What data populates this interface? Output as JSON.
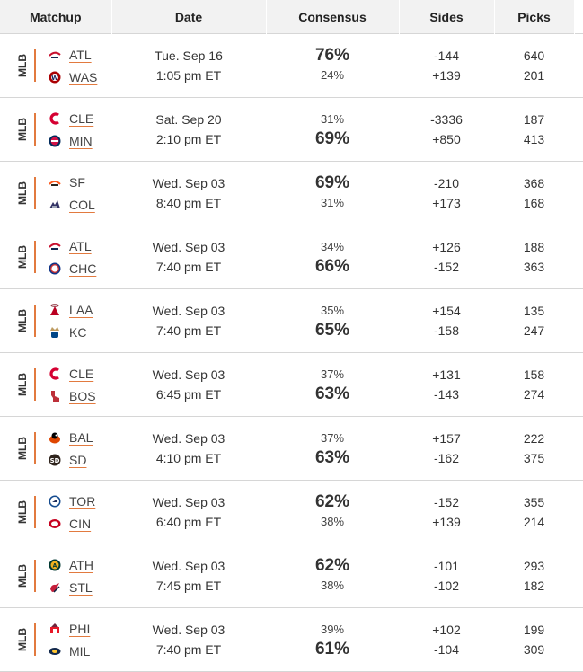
{
  "header": {
    "matchup": "Matchup",
    "date": "Date",
    "consensus": "Consensus",
    "sides": "Sides",
    "picks": "Picks"
  },
  "rows": [
    {
      "league": "MLB",
      "away": {
        "abbr": "ATL",
        "logo": "braves-logo-icon"
      },
      "home": {
        "abbr": "WAS",
        "logo": "nationals-logo-icon"
      },
      "date": "Tue. Sep 16",
      "time": "1:05 pm ET",
      "away_pct": "76%",
      "home_pct": "24%",
      "favored": "away",
      "away_side": "-144",
      "home_side": "+139",
      "away_picks": "640",
      "home_picks": "201"
    },
    {
      "league": "MLB",
      "away": {
        "abbr": "CLE",
        "logo": "guardians-logo-icon"
      },
      "home": {
        "abbr": "MIN",
        "logo": "twins-logo-icon"
      },
      "date": "Sat. Sep 20",
      "time": "2:10 pm ET",
      "away_pct": "31%",
      "home_pct": "69%",
      "favored": "home",
      "away_side": "-3336",
      "home_side": "+850",
      "away_picks": "187",
      "home_picks": "413"
    },
    {
      "league": "MLB",
      "away": {
        "abbr": "SF",
        "logo": "giants-logo-icon"
      },
      "home": {
        "abbr": "COL",
        "logo": "rockies-logo-icon"
      },
      "date": "Wed. Sep 03",
      "time": "8:40 pm ET",
      "away_pct": "69%",
      "home_pct": "31%",
      "favored": "away",
      "away_side": "-210",
      "home_side": "+173",
      "away_picks": "368",
      "home_picks": "168"
    },
    {
      "league": "MLB",
      "away": {
        "abbr": "ATL",
        "logo": "braves-logo-icon"
      },
      "home": {
        "abbr": "CHC",
        "logo": "cubs-logo-icon"
      },
      "date": "Wed. Sep 03",
      "time": "7:40 pm ET",
      "away_pct": "34%",
      "home_pct": "66%",
      "favored": "home",
      "away_side": "+126",
      "home_side": "-152",
      "away_picks": "188",
      "home_picks": "363"
    },
    {
      "league": "MLB",
      "away": {
        "abbr": "LAA",
        "logo": "angels-logo-icon"
      },
      "home": {
        "abbr": "KC",
        "logo": "royals-logo-icon"
      },
      "date": "Wed. Sep 03",
      "time": "7:40 pm ET",
      "away_pct": "35%",
      "home_pct": "65%",
      "favored": "home",
      "away_side": "+154",
      "home_side": "-158",
      "away_picks": "135",
      "home_picks": "247"
    },
    {
      "league": "MLB",
      "away": {
        "abbr": "CLE",
        "logo": "guardians-logo-icon"
      },
      "home": {
        "abbr": "BOS",
        "logo": "redsox-logo-icon"
      },
      "date": "Wed. Sep 03",
      "time": "6:45 pm ET",
      "away_pct": "37%",
      "home_pct": "63%",
      "favored": "home",
      "away_side": "+131",
      "home_side": "-143",
      "away_picks": "158",
      "home_picks": "274"
    },
    {
      "league": "MLB",
      "away": {
        "abbr": "BAL",
        "logo": "orioles-logo-icon"
      },
      "home": {
        "abbr": "SD",
        "logo": "padres-logo-icon"
      },
      "date": "Wed. Sep 03",
      "time": "4:10 pm ET",
      "away_pct": "37%",
      "home_pct": "63%",
      "favored": "home",
      "away_side": "+157",
      "home_side": "-162",
      "away_picks": "222",
      "home_picks": "375"
    },
    {
      "league": "MLB",
      "away": {
        "abbr": "TOR",
        "logo": "bluejays-logo-icon"
      },
      "home": {
        "abbr": "CIN",
        "logo": "reds-logo-icon"
      },
      "date": "Wed. Sep 03",
      "time": "6:40 pm ET",
      "away_pct": "62%",
      "home_pct": "38%",
      "favored": "away",
      "away_side": "-152",
      "home_side": "+139",
      "away_picks": "355",
      "home_picks": "214"
    },
    {
      "league": "MLB",
      "away": {
        "abbr": "ATH",
        "logo": "athletics-logo-icon"
      },
      "home": {
        "abbr": "STL",
        "logo": "cardinals-logo-icon"
      },
      "date": "Wed. Sep 03",
      "time": "7:45 pm ET",
      "away_pct": "62%",
      "home_pct": "38%",
      "favored": "away",
      "away_side": "-101",
      "home_side": "-102",
      "away_picks": "293",
      "home_picks": "182"
    },
    {
      "league": "MLB",
      "away": {
        "abbr": "PHI",
        "logo": "phillies-logo-icon"
      },
      "home": {
        "abbr": "MIL",
        "logo": "brewers-logo-icon"
      },
      "date": "Wed. Sep 03",
      "time": "7:40 pm ET",
      "away_pct": "39%",
      "home_pct": "61%",
      "favored": "home",
      "away_side": "+102",
      "home_side": "-104",
      "away_picks": "199",
      "home_picks": "309"
    }
  ],
  "colors": {
    "accent": "#e27a3f",
    "header_bg": "#f2f2f2",
    "divider": "#d6d6d6"
  }
}
